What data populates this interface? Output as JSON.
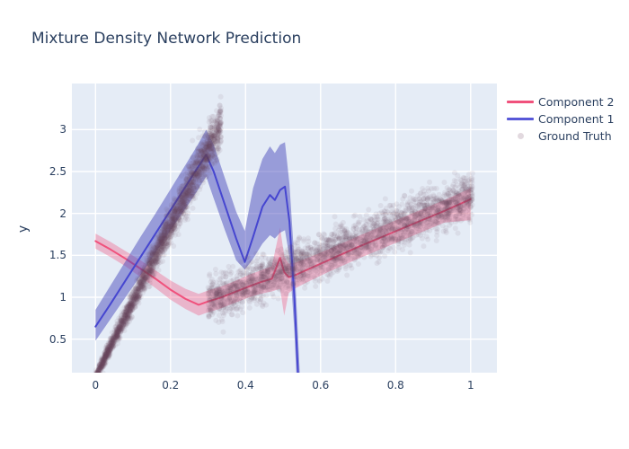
{
  "title": "Mixture Density Network Prediction",
  "colors": {
    "background": "#ffffff",
    "plot_background": "#E5ECF6",
    "grid": "#ffffff",
    "text": "#2a3f5f"
  },
  "legend": {
    "items": [
      {
        "label": "Component 2",
        "swatch": "line",
        "color": "#f0517c"
      },
      {
        "label": "Component 1",
        "swatch": "line",
        "color": "#5858d8"
      },
      {
        "label": "Ground Truth",
        "swatch": "dot",
        "color": "rgba(110,66,95,0.2)"
      }
    ]
  },
  "chart_data": {
    "type": "line",
    "title": "Mixture Density Network Prediction",
    "xlabel": "",
    "ylabel": "y",
    "x_range": [
      -0.063,
      1.07
    ],
    "y_range": [
      0.1,
      3.55
    ],
    "x_tick_values": [
      0,
      0.2,
      0.4,
      0.6,
      0.8,
      1
    ],
    "x_tick_labels": [
      "0",
      "0.2",
      "0.4",
      "0.6",
      "0.8",
      "1"
    ],
    "y_tick_values": [
      0.5,
      1,
      1.5,
      2,
      2.5,
      3
    ],
    "y_tick_labels": [
      "0.5",
      "1",
      "1.5",
      "2",
      "2.5",
      "3"
    ],
    "grid": true,
    "legend_position": "outside-right-top",
    "series": [
      {
        "name": "Component 2",
        "type": "line-with-band",
        "color": "#f0517c",
        "band_color": "rgba(240,81,124,0.35)",
        "x": [
          0.0,
          0.04,
          0.08,
          0.12,
          0.16,
          0.2,
          0.24,
          0.275,
          0.3,
          0.33,
          0.37,
          0.41,
          0.44,
          0.47,
          0.492,
          0.503,
          0.515,
          0.53,
          0.56,
          0.62,
          0.7,
          0.78,
          0.86,
          0.93,
          1.0
        ],
        "y": [
          1.67,
          1.57,
          1.46,
          1.34,
          1.22,
          1.09,
          0.98,
          0.91,
          0.95,
          0.99,
          1.06,
          1.13,
          1.18,
          1.22,
          1.47,
          1.3,
          1.24,
          1.26,
          1.32,
          1.44,
          1.6,
          1.75,
          1.9,
          2.03,
          2.17
        ],
        "y_upper": [
          1.76,
          1.66,
          1.55,
          1.44,
          1.32,
          1.2,
          1.1,
          1.04,
          1.08,
          1.12,
          1.19,
          1.27,
          1.32,
          1.37,
          1.83,
          1.49,
          1.4,
          1.41,
          1.46,
          1.57,
          1.73,
          1.88,
          2.03,
          2.16,
          2.3
        ],
        "y_lower": [
          1.58,
          1.48,
          1.37,
          1.24,
          1.11,
          0.97,
          0.86,
          0.78,
          0.82,
          0.86,
          0.93,
          1.0,
          1.04,
          1.07,
          1.1,
          0.78,
          1.05,
          1.1,
          1.17,
          1.3,
          1.46,
          1.61,
          1.76,
          1.89,
          1.92
        ]
      },
      {
        "name": "Component 1",
        "type": "line-with-band",
        "color": "#4646d0",
        "band_color": "rgba(70,70,185,0.48)",
        "x": [
          0.0,
          0.04,
          0.08,
          0.12,
          0.16,
          0.2,
          0.24,
          0.27,
          0.295,
          0.315,
          0.345,
          0.375,
          0.398,
          0.42,
          0.445,
          0.465,
          0.478,
          0.492,
          0.505,
          0.517,
          0.53,
          0.545,
          0.558
        ],
        "y": [
          0.65,
          0.92,
          1.2,
          1.48,
          1.76,
          2.04,
          2.32,
          2.53,
          2.7,
          2.5,
          2.1,
          1.7,
          1.42,
          1.72,
          2.08,
          2.22,
          2.16,
          2.28,
          2.32,
          1.9,
          1.0,
          -0.4,
          -1.8
        ],
        "y_upper": [
          0.85,
          1.14,
          1.43,
          1.72,
          2.0,
          2.29,
          2.58,
          2.8,
          3.0,
          2.82,
          2.42,
          2.02,
          1.79,
          2.3,
          2.65,
          2.8,
          2.72,
          2.82,
          2.85,
          2.35,
          1.45,
          0.05,
          -1.35
        ],
        "y_lower": [
          0.48,
          0.74,
          1.0,
          1.26,
          1.53,
          1.8,
          2.06,
          2.26,
          2.44,
          2.18,
          1.8,
          1.44,
          1.33,
          1.46,
          1.64,
          1.74,
          1.7,
          1.77,
          1.8,
          1.48,
          0.6,
          -0.85,
          -2.25
        ]
      },
      {
        "name": "Ground Truth",
        "type": "scatter",
        "color": "rgb(110,66,95)",
        "marker_opacity": 0.085,
        "marker_px": 3,
        "generator": {
          "seed": 42,
          "branches": [
            {
              "n": 2400,
              "x_min": 0.0,
              "x_max": 0.335,
              "y_at_x_min": 0.05,
              "slope": 9.05,
              "noise_base": 0.03,
              "noise_slope": 0.36
            },
            {
              "n": 2400,
              "x_min": 0.3,
              "x_max": 1.005,
              "y_at_x_min": 0.95,
              "slope": 1.81,
              "noise_base": 0.13,
              "noise_slope": 0.0
            }
          ]
        }
      }
    ]
  }
}
